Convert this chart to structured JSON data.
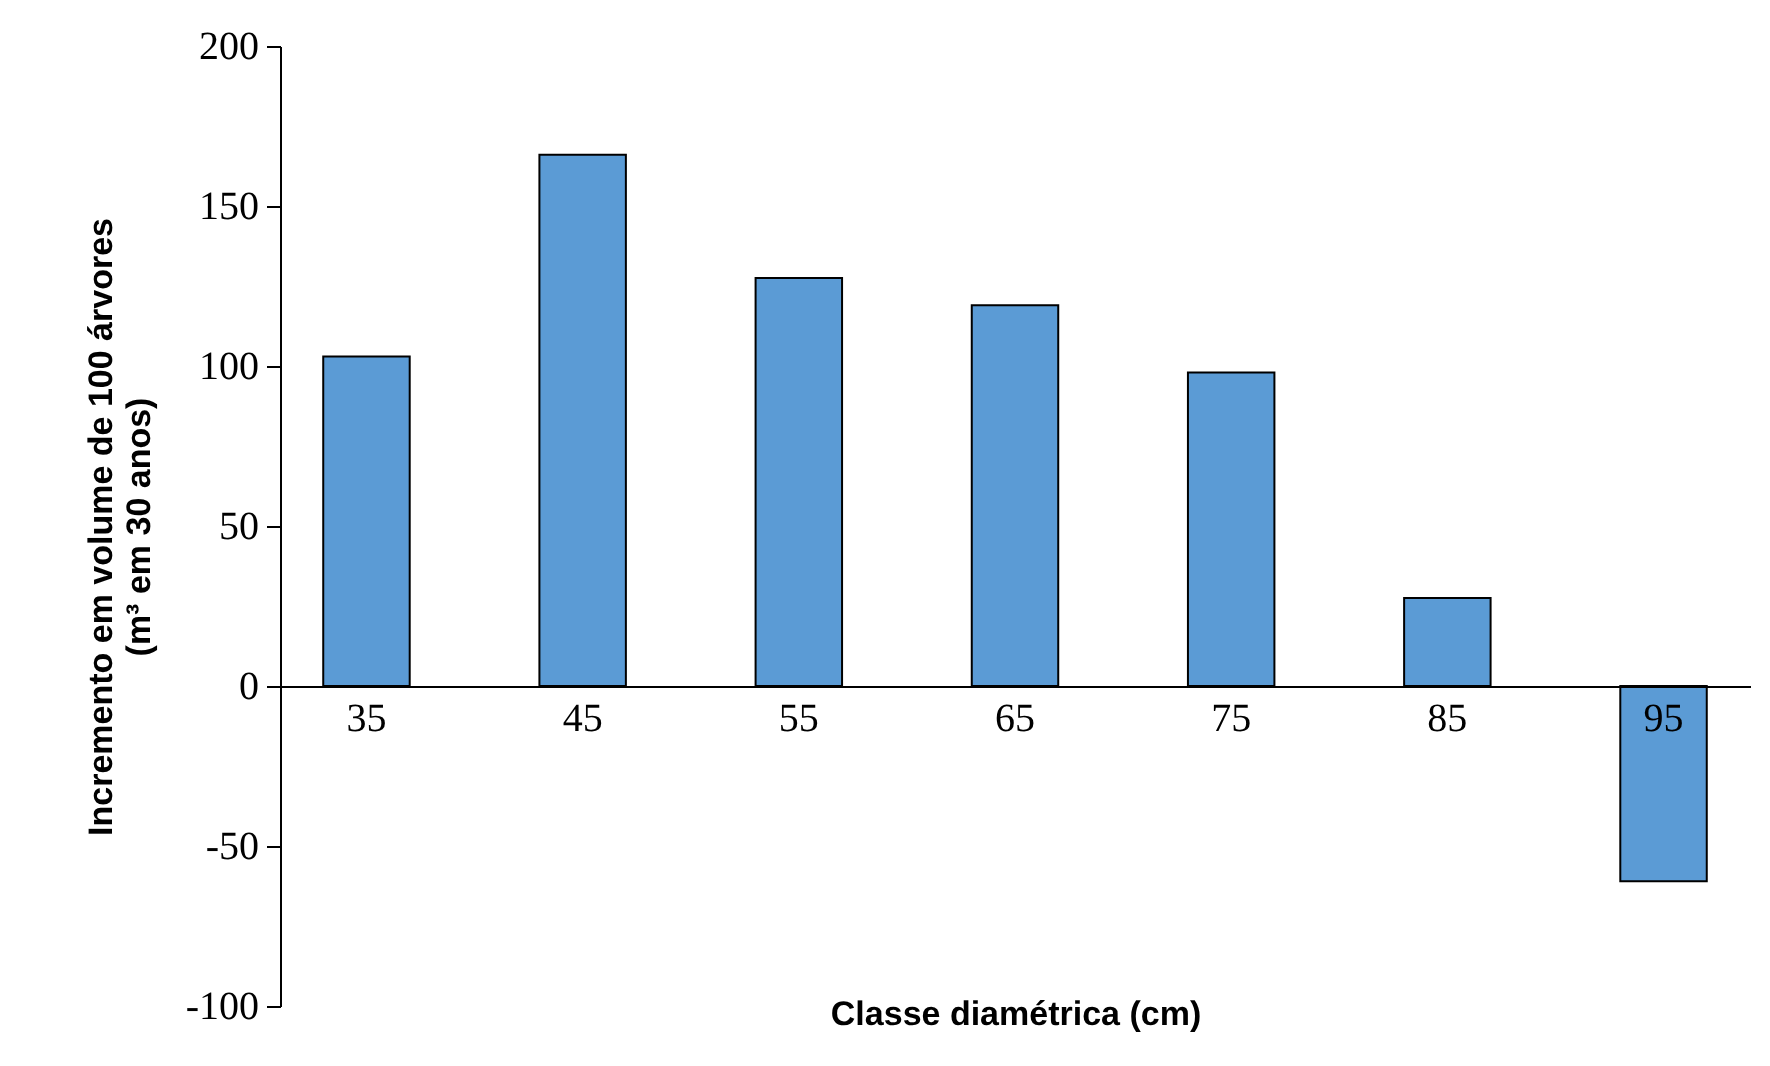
{
  "chart_data": {
    "type": "bar",
    "xlabel": "Classe diamétrica (cm)",
    "ylabel": "Incremento em volume de 100 árvores\n(m³ em 30 anos)",
    "categories": [
      "35",
      "45",
      "55",
      "65",
      "75",
      "85",
      "95"
    ],
    "values": [
      103,
      166,
      127.5,
      119,
      98,
      27.5,
      -61
    ],
    "color": "#5b9bd5",
    "ylim": [
      -100,
      200
    ],
    "yticks": [
      -100,
      -50,
      0,
      50,
      100,
      150,
      200
    ],
    "grid": false
  }
}
